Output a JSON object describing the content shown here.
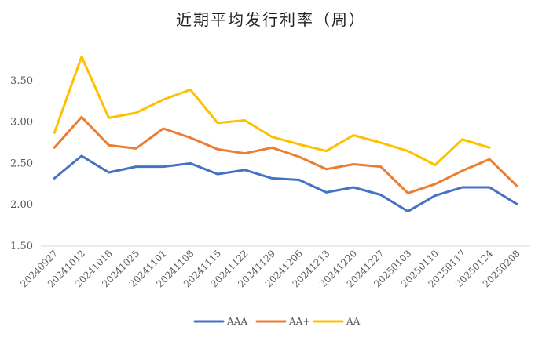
{
  "chart_data": {
    "type": "line",
    "title": "近期平均发行利率（周）",
    "categories": [
      "20240927",
      "20241012",
      "20241018",
      "20241025",
      "20241101",
      "20241108",
      "20241115",
      "20241122",
      "20241129",
      "20241206",
      "20241213",
      "20241220",
      "20241227",
      "20250103",
      "20250110",
      "20250117",
      "20250124",
      "20250208"
    ],
    "series": [
      {
        "name": "AAA",
        "color": "#4472C4",
        "values": [
          2.32,
          2.59,
          2.39,
          2.46,
          2.46,
          2.5,
          2.37,
          2.42,
          2.32,
          2.3,
          2.15,
          2.21,
          2.12,
          1.92,
          2.11,
          2.21,
          2.21,
          2.01
        ]
      },
      {
        "name": "AA+",
        "color": "#ED7D31",
        "values": [
          2.69,
          3.06,
          2.72,
          2.68,
          2.92,
          2.81,
          2.67,
          2.62,
          2.69,
          2.58,
          2.43,
          2.49,
          2.46,
          2.14,
          2.25,
          2.41,
          2.55,
          2.23
        ]
      },
      {
        "name": "AA",
        "color": "#FFC000",
        "values": [
          2.87,
          3.79,
          3.05,
          3.11,
          3.27,
          3.39,
          2.99,
          3.02,
          2.82,
          2.73,
          2.65,
          2.84,
          2.75,
          2.65,
          2.48,
          2.79,
          2.69,
          null
        ]
      }
    ],
    "ylim": [
      1.5,
      4.0
    ],
    "yticks": [
      "1.50",
      "2.00",
      "2.50",
      "3.00",
      "3.50"
    ],
    "xlabel": "",
    "ylabel": "",
    "grid": false,
    "legend": "bottom"
  }
}
